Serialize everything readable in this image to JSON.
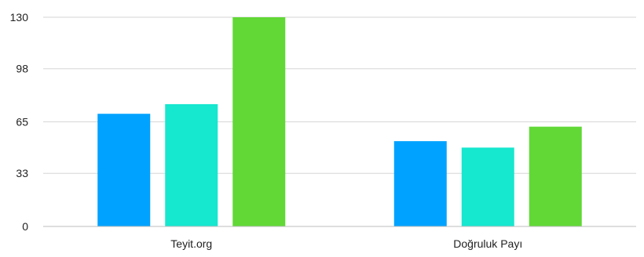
{
  "chart_data": {
    "type": "bar",
    "categories": [
      "Teyit.org",
      "Doğruluk Payı"
    ],
    "series": [
      {
        "values": [
          70,
          53
        ],
        "color": "#00A2FF"
      },
      {
        "values": [
          76,
          49
        ],
        "color": "#16E7CF"
      },
      {
        "values": [
          130,
          62
        ],
        "color": "#61D836"
      }
    ],
    "y_ticks": [
      "0",
      "33",
      "65",
      "98",
      "130"
    ],
    "ylim": [
      0,
      130
    ],
    "grid": true,
    "legend": "none",
    "title": "",
    "xlabel": "",
    "ylabel": ""
  }
}
